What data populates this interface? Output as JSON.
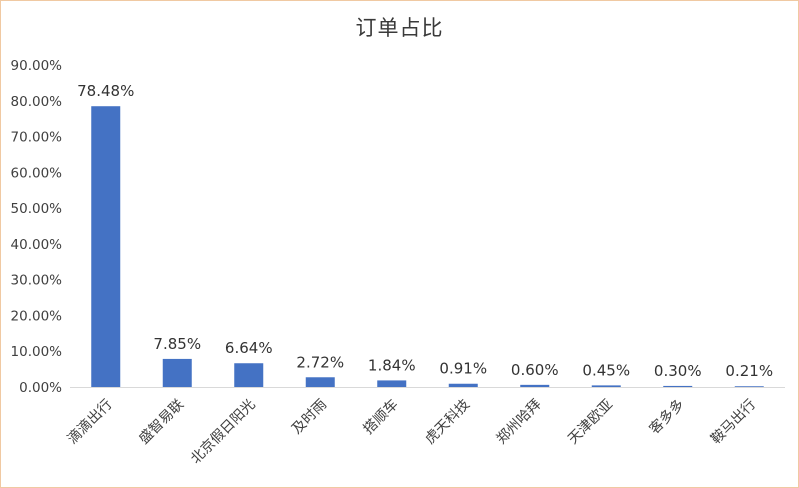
{
  "chart_data": {
    "type": "bar",
    "title": "订单占比",
    "xlabel": "",
    "ylabel": "",
    "categories": [
      "滴滴出行",
      "盛智易联",
      "北京假日阳光",
      "及时雨",
      "搭顺车",
      "虎天科技",
      "郑州哈拜",
      "天津欧亚",
      "客多多",
      "鞍马出行"
    ],
    "values": [
      78.48,
      7.85,
      6.64,
      2.72,
      1.84,
      0.91,
      0.6,
      0.45,
      0.3,
      0.21
    ],
    "value_labels": [
      "78.48%",
      "7.85%",
      "6.64%",
      "2.72%",
      "1.84%",
      "0.91%",
      "0.60%",
      "0.45%",
      "0.30%",
      "0.21%"
    ],
    "ylim": [
      0,
      90
    ],
    "yticks": [
      0,
      10,
      20,
      30,
      40,
      50,
      60,
      70,
      80,
      90
    ],
    "ytick_labels": [
      "0.00%",
      "10.00%",
      "20.00%",
      "30.00%",
      "40.00%",
      "50.00%",
      "60.00%",
      "70.00%",
      "80.00%",
      "90.00%"
    ],
    "bar_color": "#4472c4",
    "grid": false,
    "legend": "none"
  }
}
